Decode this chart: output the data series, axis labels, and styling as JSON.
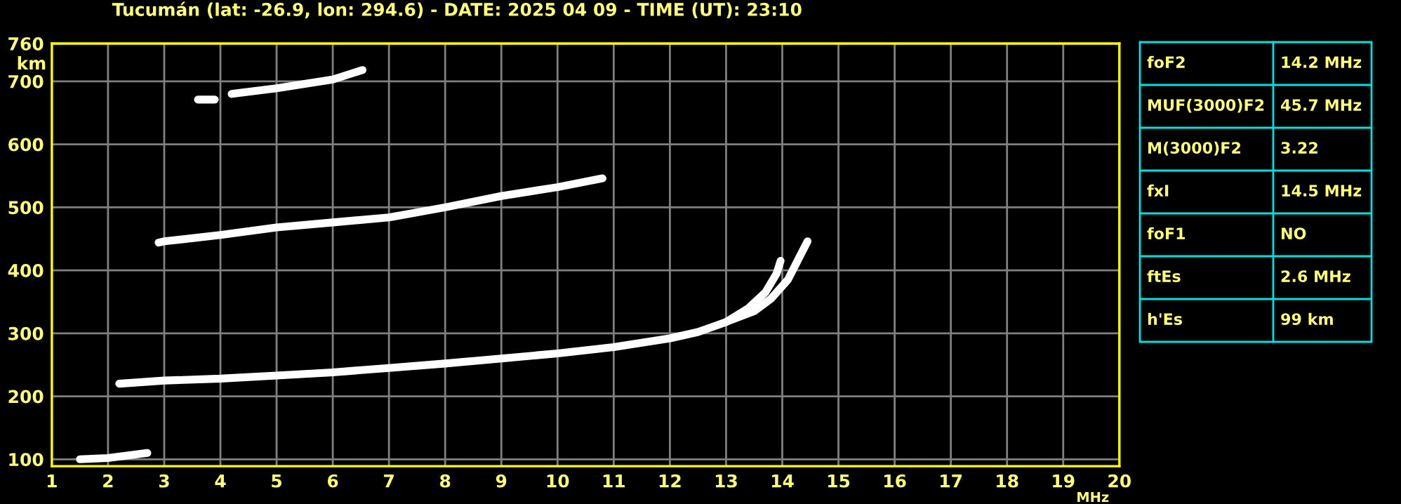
{
  "chart_data": {
    "type": "line",
    "title": "Tucumán (lat: -26.9, lon: 294.6) - DATE: 2025 04 09 - TIME (UT): 23:10",
    "xlabel": "MHz",
    "ylabel": "km",
    "xlim": [
      1,
      20
    ],
    "xticks": [
      1,
      2,
      3,
      4,
      5,
      6,
      7,
      8,
      9,
      10,
      11,
      12,
      13,
      14,
      15,
      16,
      17,
      18,
      19,
      20
    ],
    "ylim": [
      89,
      760
    ],
    "yticks": [
      100,
      200,
      300,
      400,
      500,
      600,
      700,
      760
    ],
    "grid": true,
    "marker": "none",
    "line_style": "solid",
    "series": [
      {
        "color": "#ffffff",
        "x": [
          1.5,
          2.0,
          2.7
        ],
        "values": [
          100,
          102,
          110
        ]
      },
      {
        "color": "#ffffff",
        "x": [
          2.2,
          3,
          4,
          5,
          6,
          7,
          8,
          9,
          10,
          11,
          12,
          12.5,
          13,
          13.4,
          13.7,
          13.9,
          13.97
        ],
        "values": [
          220,
          225,
          228,
          233,
          238,
          245,
          252,
          260,
          268,
          278,
          292,
          302,
          318,
          340,
          365,
          395,
          415
        ]
      },
      {
        "color": "#ffffff",
        "x": [
          13.0,
          13.5,
          13.8,
          14.1,
          14.3,
          14.45
        ],
        "values": [
          318,
          335,
          355,
          385,
          420,
          446
        ]
      },
      {
        "color": "#ffffff",
        "x": [
          2.9,
          3,
          4,
          5,
          6,
          7,
          8,
          9,
          10,
          10.8
        ],
        "values": [
          444,
          446,
          456,
          468,
          476,
          484,
          500,
          518,
          532,
          546
        ]
      },
      {
        "color": "#ffffff",
        "x": [
          3.6,
          3.9,
          4.0,
          4.2,
          5,
          6,
          6.53
        ],
        "values": [
          671,
          671,
          null,
          680,
          689,
          703,
          718
        ]
      }
    ],
    "annotations": [
      "foF2",
      "14.2 MHz",
      "MUF(3000)F2",
      "45.7 MHz",
      "M(3000)F2",
      "3.22",
      "fxI",
      "14.5 MHz",
      "foF1",
      "NO",
      "ftEs",
      "2.6 MHz",
      "h'Es",
      "99 km"
    ]
  }
}
